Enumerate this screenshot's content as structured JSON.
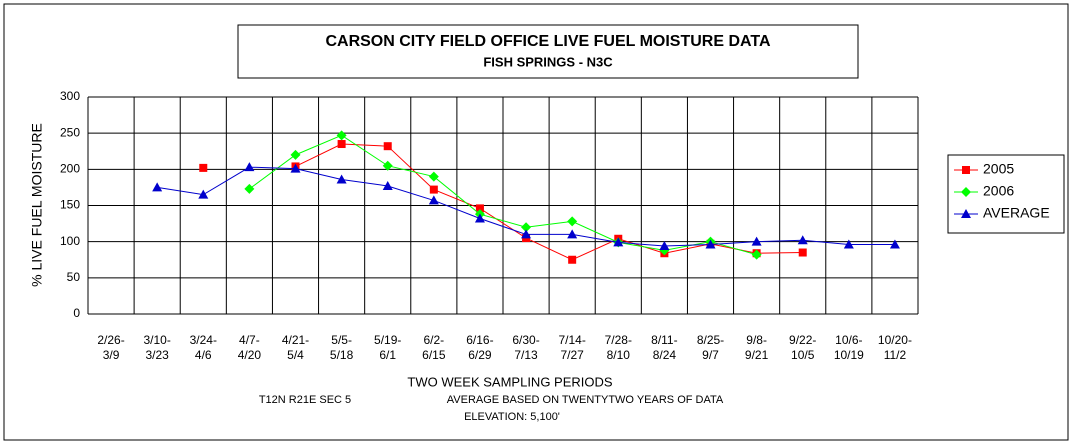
{
  "chart_data": {
    "type": "line",
    "title": "CARSON CITY FIELD OFFICE  LIVE FUEL MOISTURE DATA",
    "subtitle": "FISH SPRINGS - N3C",
    "y_label": "% LIVE FUEL MOISTURE",
    "x_label": "TWO WEEK SAMPLING PERIODS",
    "notes": [
      "T12N R21E SEC 5",
      "AVERAGE BASED ON TWENTYTWO YEARS OF DATA",
      "ELEVATION: 5,100'"
    ],
    "categories": [
      [
        "2/26-",
        "3/9"
      ],
      [
        "3/10-",
        "3/23"
      ],
      [
        "3/24-",
        "4/6"
      ],
      [
        "4/7-",
        "4/20"
      ],
      [
        "4/21-",
        "5/4"
      ],
      [
        "5/5-",
        "5/18"
      ],
      [
        "5/19-",
        "6/1"
      ],
      [
        "6/2-",
        "6/15"
      ],
      [
        "6/16-",
        "6/29"
      ],
      [
        "6/30-",
        "7/13"
      ],
      [
        "7/14-",
        "7/27"
      ],
      [
        "7/28-",
        "8/10"
      ],
      [
        "8/11-",
        "8/24"
      ],
      [
        "8/25-",
        "9/7"
      ],
      [
        "9/8-",
        "9/21"
      ],
      [
        "9/22-",
        "10/5"
      ],
      [
        "10/6-",
        "10/19"
      ],
      [
        "10/20-",
        "11/2"
      ]
    ],
    "series": [
      {
        "name": "2005",
        "color": "#ff0000",
        "marker": "square",
        "values": [
          null,
          null,
          202,
          null,
          204,
          235,
          232,
          172,
          146,
          105,
          75,
          104,
          84,
          97,
          84,
          85,
          null,
          null
        ]
      },
      {
        "name": "2006",
        "color": "#00ff00",
        "marker": "diamond",
        "values": [
          null,
          null,
          null,
          173,
          220,
          247,
          205,
          190,
          138,
          120,
          128,
          99,
          88,
          100,
          82,
          null,
          null,
          null
        ]
      },
      {
        "name": "AVERAGE",
        "color": "#0000cc",
        "marker": "triangle",
        "values": [
          null,
          175,
          165,
          203,
          201,
          186,
          177,
          157,
          132,
          110,
          110,
          99,
          94,
          96,
          100,
          102,
          96,
          96
        ]
      }
    ],
    "ylim": [
      0,
      300
    ],
    "yticks": [
      0,
      50,
      100,
      150,
      200,
      250,
      300
    ],
    "grid": true,
    "legend": "right"
  }
}
